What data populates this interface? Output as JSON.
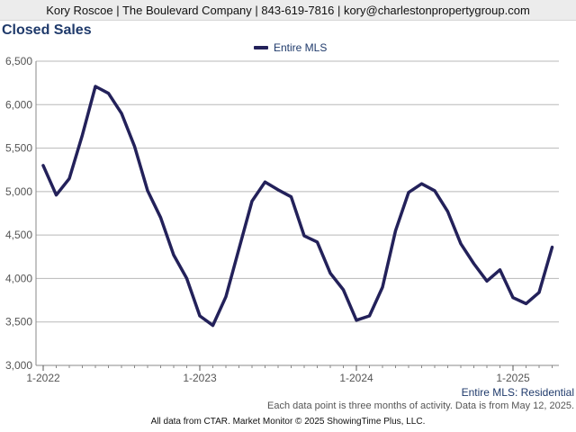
{
  "header": {
    "contact_line": "Kory Roscoe | The Boulevard Company | 843-619-7816 | kory@charlestonpropertygroup.com"
  },
  "colors": {
    "series_line": "#23215a",
    "title": "#1f3a6b",
    "grid": "#b8b8b8"
  },
  "chart_data": {
    "type": "line",
    "title": "Closed Sales",
    "xlabel": "",
    "ylabel": "",
    "ylim": [
      3000,
      6500
    ],
    "y_ticks": [
      "3,000",
      "3,500",
      "4,000",
      "4,500",
      "5,000",
      "5,500",
      "6,000",
      "6,500"
    ],
    "y_tick_values": [
      3000,
      3500,
      4000,
      4500,
      5000,
      5500,
      6000,
      6500
    ],
    "x_tick_labels": [
      "1-2022",
      "1-2023",
      "1-2024",
      "1-2025"
    ],
    "x_tick_months": [
      "2022-01",
      "2023-01",
      "2024-01",
      "2025-01"
    ],
    "x_range": [
      "2022-01",
      "2025-04"
    ],
    "grid": true,
    "legend": "top-center",
    "x": [
      "2022-01",
      "2022-02",
      "2022-03",
      "2022-04",
      "2022-05",
      "2022-06",
      "2022-07",
      "2022-08",
      "2022-09",
      "2022-10",
      "2022-11",
      "2022-12",
      "2023-01",
      "2023-02",
      "2023-03",
      "2023-04",
      "2023-05",
      "2023-06",
      "2023-07",
      "2023-08",
      "2023-09",
      "2023-10",
      "2023-11",
      "2023-12",
      "2024-01",
      "2024-02",
      "2024-03",
      "2024-04",
      "2024-05",
      "2024-06",
      "2024-07",
      "2024-08",
      "2024-09",
      "2024-10",
      "2024-11",
      "2024-12",
      "2025-01",
      "2025-02",
      "2025-03",
      "2025-04"
    ],
    "series": [
      {
        "name": "Entire MLS",
        "values": [
          5300,
          4960,
          5150,
          5650,
          6210,
          6130,
          5900,
          5520,
          5010,
          4700,
          4270,
          4000,
          3570,
          3460,
          3790,
          4340,
          4890,
          5110,
          5020,
          4940,
          4490,
          4420,
          4060,
          3870,
          3520,
          3570,
          3900,
          4550,
          4990,
          5090,
          5010,
          4770,
          4400,
          4170,
          3970,
          4100,
          3780,
          3710,
          3840,
          4360
        ]
      }
    ]
  },
  "footer": {
    "series_label": "Entire MLS: Residential",
    "note": "Each data point is three months of activity. Data is from May 12, 2025.",
    "credit": "All data from CTAR. Market Monitor © 2025 ShowingTime Plus, LLC."
  }
}
